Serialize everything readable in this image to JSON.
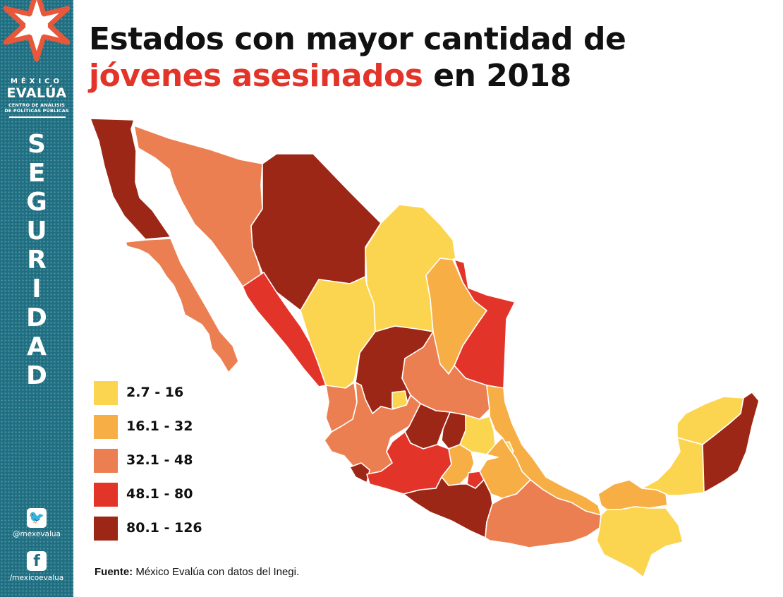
{
  "sidebar": {
    "brand_top": "MÉXICO",
    "brand_name": "EVALÚA",
    "brand_sub_line1": "CENTRO DE ANÁLISIS",
    "brand_sub_line2": "DE POLÍTICAS PÚBLICAS",
    "section_letters": [
      "S",
      "E",
      "G",
      "U",
      "R",
      "I",
      "D",
      "A",
      "D"
    ],
    "twitter_handle": "@mexevalua",
    "facebook_handle": "/mexicoevalua",
    "colors": {
      "background": "#1f6f82",
      "logo_star": "#e8573a"
    }
  },
  "title": {
    "line1": "Estados con mayor cantidad de",
    "line2_accent": "jóvenes asesinados",
    "line2_rest": "en 2018",
    "accent_color": "#e3342a"
  },
  "legend": [
    {
      "label": "2.7 - 16",
      "color": "#fcd550",
      "class": 1
    },
    {
      "label": "16.1 - 32",
      "color": "#f6ae45",
      "class": 2
    },
    {
      "label": "32.1 - 48",
      "color": "#ec7f51",
      "class": 3
    },
    {
      "label": "48.1 - 80",
      "color": "#e3342a",
      "class": 4
    },
    {
      "label": "80.1 - 126",
      "color": "#9d2717",
      "class": 5
    }
  ],
  "map": {
    "state_classes": {
      "baja-california": 5,
      "baja-california-sur": 3,
      "sonora": 3,
      "chihuahua": 5,
      "coahuila": 1,
      "nuevo-leon": 2,
      "tamaulipas": 4,
      "sinaloa": 4,
      "durango": 1,
      "zacatecas": 5,
      "san-luis-potosi": 3,
      "nayarit": 3,
      "aguascalientes": 1,
      "jalisco": 3,
      "guanajuato": 5,
      "queretaro": 5,
      "hidalgo": 1,
      "veracruz": 2,
      "colima": 5,
      "michoacan": 4,
      "estado-de-mexico": 2,
      "ciudad-de-mexico": 1,
      "morelos": 4,
      "tlaxcala": 1,
      "puebla": 2,
      "guerrero": 5,
      "oaxaca": 3,
      "tabasco": 2,
      "chiapas": 1,
      "campeche": 1,
      "yucatan": 1,
      "quintana-roo": 5
    }
  },
  "source": {
    "label": "Fuente:",
    "text": "México Evalúa con datos del Inegi."
  }
}
